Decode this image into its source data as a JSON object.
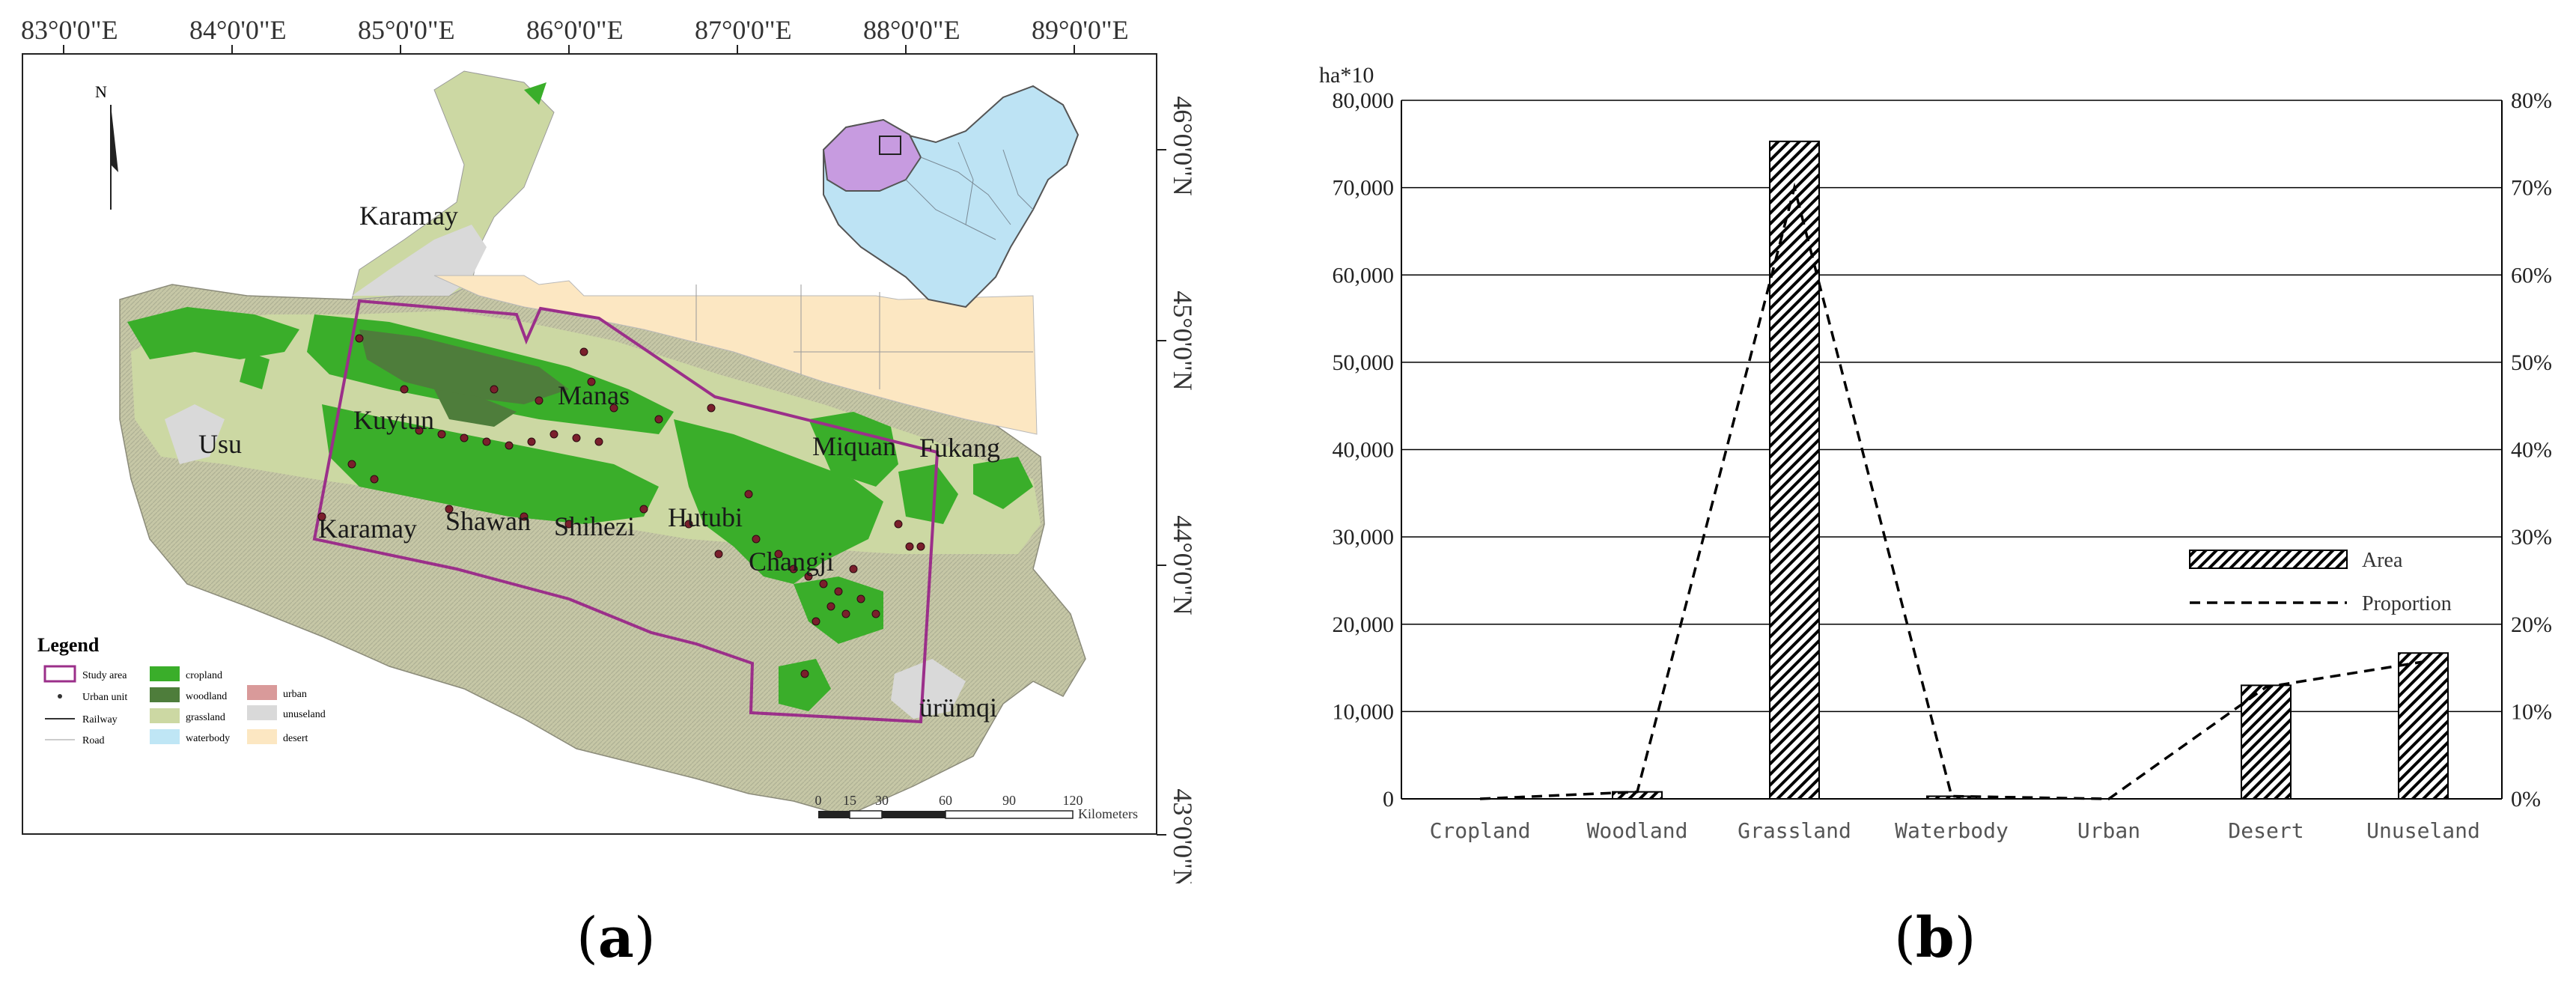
{
  "figure": {
    "label_a": "a",
    "label_b": "b"
  },
  "map": {
    "top_ticks": [
      "83°0'0\"E",
      "84°0'0\"E",
      "85°0'0\"E",
      "86°0'0\"E",
      "87°0'0\"E",
      "88°0'0\"E",
      "89°0'0\"E"
    ],
    "right_ticks": [
      "46°0'0\"N",
      "45°0'0\"N",
      "44°0'0\"N",
      "43°0'0\"N"
    ],
    "north": "N",
    "places": [
      "Karamay",
      "Manas",
      "Usu",
      "Kuytun",
      "Karamay",
      "Shawan",
      "Shihezi",
      "Hutubi",
      "Miquan",
      "Fukang",
      "Changji",
      "ürümqi"
    ],
    "legend": {
      "title": "Legend",
      "items": [
        "Study area",
        "cropland",
        "urban",
        "Urban unit",
        "woodland",
        "unuseland",
        "Railway",
        "grassland",
        "Road",
        "waterbody",
        "desert"
      ]
    },
    "scale": {
      "ticks": [
        "0",
        "15",
        "30",
        "60",
        "90",
        "120"
      ],
      "unit": "Kilometers"
    },
    "colors": {
      "cropland": "#3aae2a",
      "woodland": "#4e7d3b",
      "grassland": "#c9d6a0",
      "mountain": "#b9ba9c",
      "unuseland": "#d9d9d9",
      "desert": "#fce7c2",
      "waterbody": "#bfe6f5",
      "urban": "#d99a9a",
      "study_area": "#9b2f8a",
      "china": "#bde3f4",
      "xinjiang": "#c79be0"
    }
  },
  "chart_data": {
    "type": "bar",
    "categories": [
      "Cropland",
      "Woodland",
      "Grassland",
      "Waterbody",
      "Urban",
      "Desert",
      "Unuseland"
    ],
    "series": [
      {
        "name": "Area",
        "type": "bar",
        "axis": "left",
        "values": [
          0,
          800,
          75300,
          300,
          0,
          13000,
          16700
        ]
      },
      {
        "name": "Proportion",
        "type": "line",
        "axis": "right",
        "values": [
          0,
          0.8,
          70.0,
          0.3,
          0,
          12.8,
          15.7
        ]
      }
    ],
    "ylabel": "ha*10",
    "ylim": [
      0,
      80000
    ],
    "y_ticks": [
      "0",
      "10,000",
      "20,000",
      "30,000",
      "40,000",
      "50,000",
      "60,000",
      "70,000",
      "80,000"
    ],
    "y2lim": [
      0,
      80
    ],
    "y2_ticks": [
      "0%",
      "10%",
      "20%",
      "30%",
      "40%",
      "50%",
      "60%",
      "70%",
      "80%"
    ],
    "grid": true,
    "legend_position": "center-right"
  }
}
